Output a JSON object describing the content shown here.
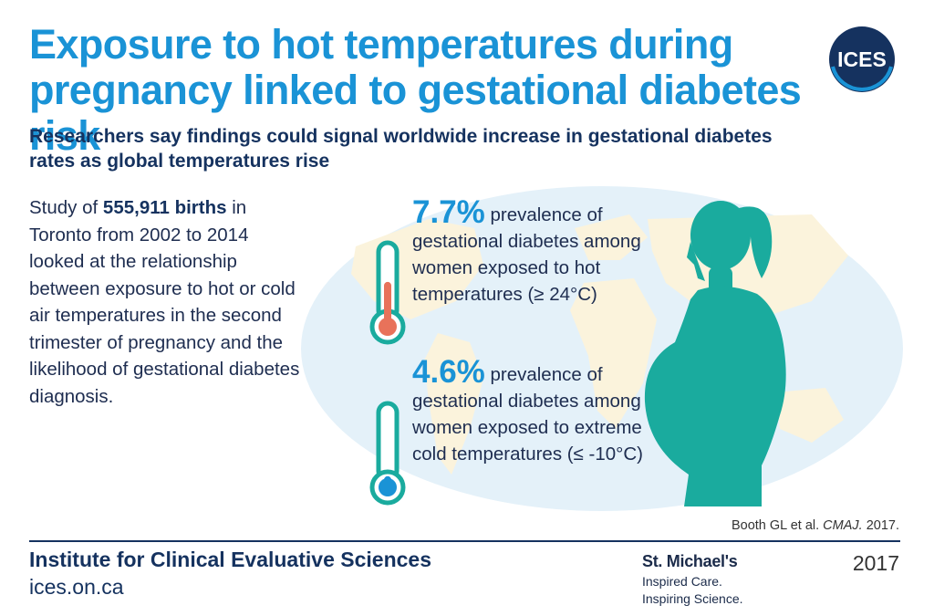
{
  "header": {
    "title": "Exposure to hot temperatures during pregnancy linked to gestational diabetes risk",
    "subtitle": "Researchers say findings could signal worldwide increase in gestational diabetes rates as global temperatures rise"
  },
  "logo": {
    "text": "ICES",
    "color": "#15325f"
  },
  "intro": {
    "prefix": "Study of ",
    "highlight": "555,911 births",
    "suffix": " in Toronto from 2002 to 2014 looked at the relationship between exposure to hot or cold air temperatures in the second trimester of pregnancy and the likelihood of gestational diabetes diagnosis."
  },
  "stats": [
    {
      "value": "7.7%",
      "text": " prevalence of gestational diabetes among women exposed to hot temperatures (≥ 24°C)",
      "icon": "thermometer-hot-icon",
      "fill_color": "#e8725a",
      "level": 0.55
    },
    {
      "value": "4.6%",
      "text": " prevalence of gestational diabetes among women exposed to extreme cold temperatures (≤ -10°C)",
      "icon": "thermometer-cold-icon",
      "fill_color": "#1a93d6",
      "level": 0.1
    }
  ],
  "colors": {
    "title": "#1a93d6",
    "navy": "#15325f",
    "teal": "#1aab9e",
    "map_ocean": "#e4f1f9",
    "map_land": "#fbf3dc"
  },
  "citation": {
    "authors": "Booth GL et al. ",
    "journal": "CMAJ.",
    "year": " 2017."
  },
  "footer": {
    "org": "Institute for Clinical Evaluative Sciences",
    "url": "ices.on.ca",
    "partner_name": "St. Michael's",
    "partner_tagline_1": "Inspired Care.",
    "partner_tagline_2": "Inspiring Science.",
    "year": "2017"
  }
}
